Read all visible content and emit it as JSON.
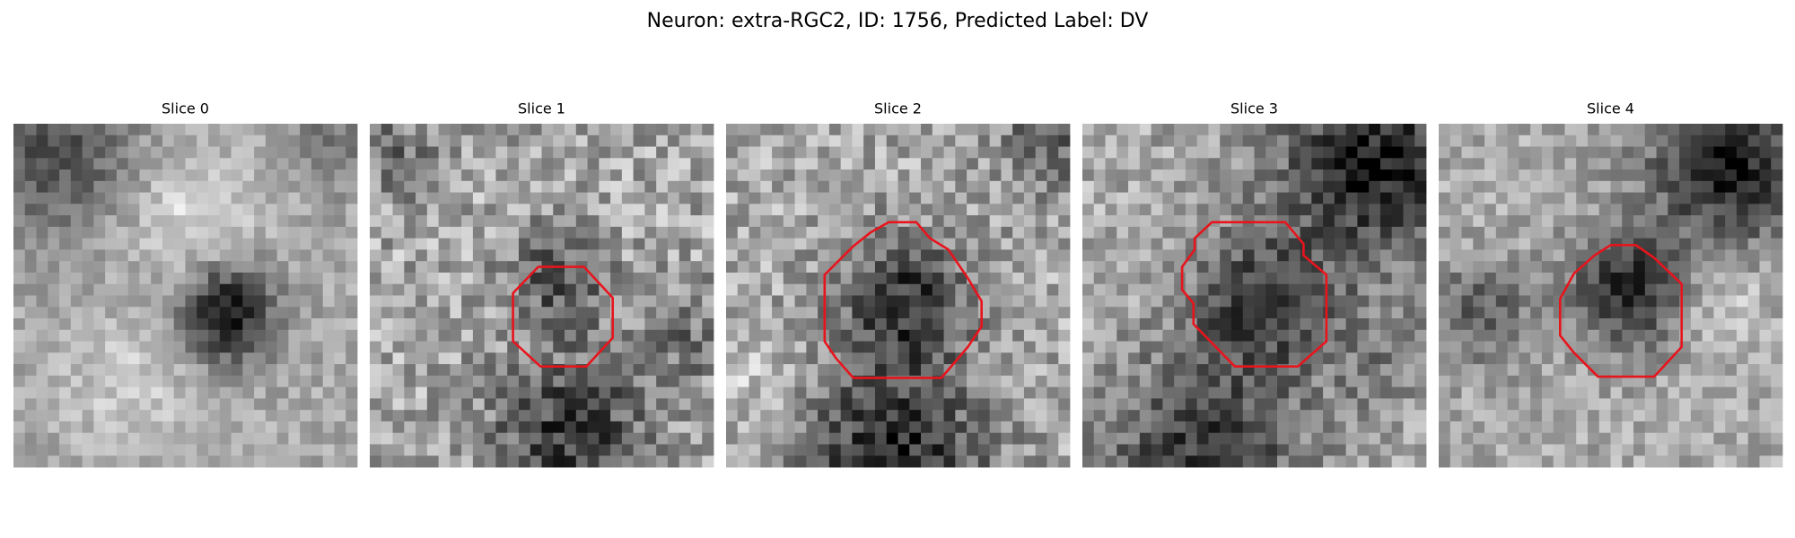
{
  "title": "Neuron: extra-RGC2, ID: 1756, Predicted Label: DV",
  "panels": [
    {
      "title": "Slice 0"
    },
    {
      "title": "Slice 1"
    },
    {
      "title": "Slice 2"
    },
    {
      "title": "Slice 3"
    },
    {
      "title": "Slice 4"
    }
  ]
}
